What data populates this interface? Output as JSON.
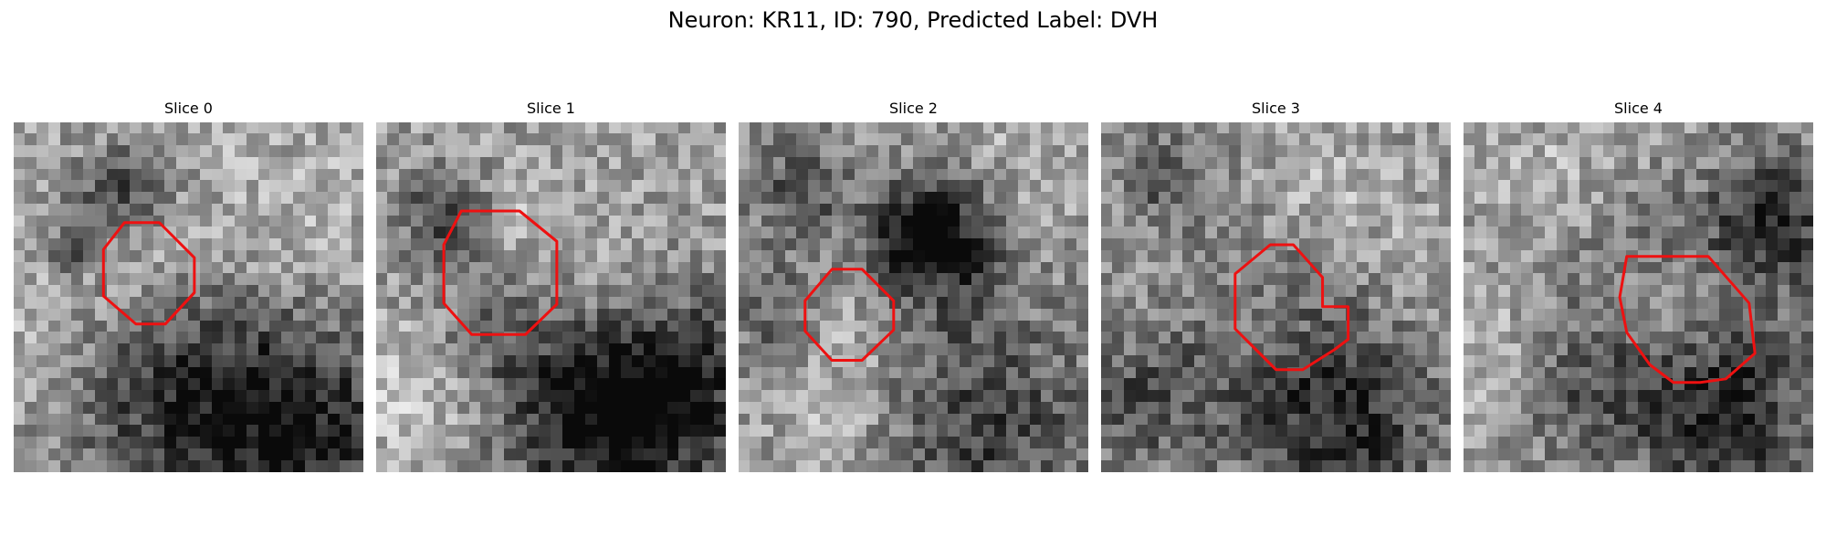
{
  "figure": {
    "title": "Neuron: KR11, ID: 790, Predicted Label: DVH"
  },
  "panels": [
    {
      "title": "Slice 0"
    },
    {
      "title": "Slice 1"
    },
    {
      "title": "Slice 2"
    },
    {
      "title": "Slice 3"
    },
    {
      "title": "Slice 4"
    }
  ],
  "colors": {
    "outline": "#ee1111",
    "background": "#ffffff"
  }
}
